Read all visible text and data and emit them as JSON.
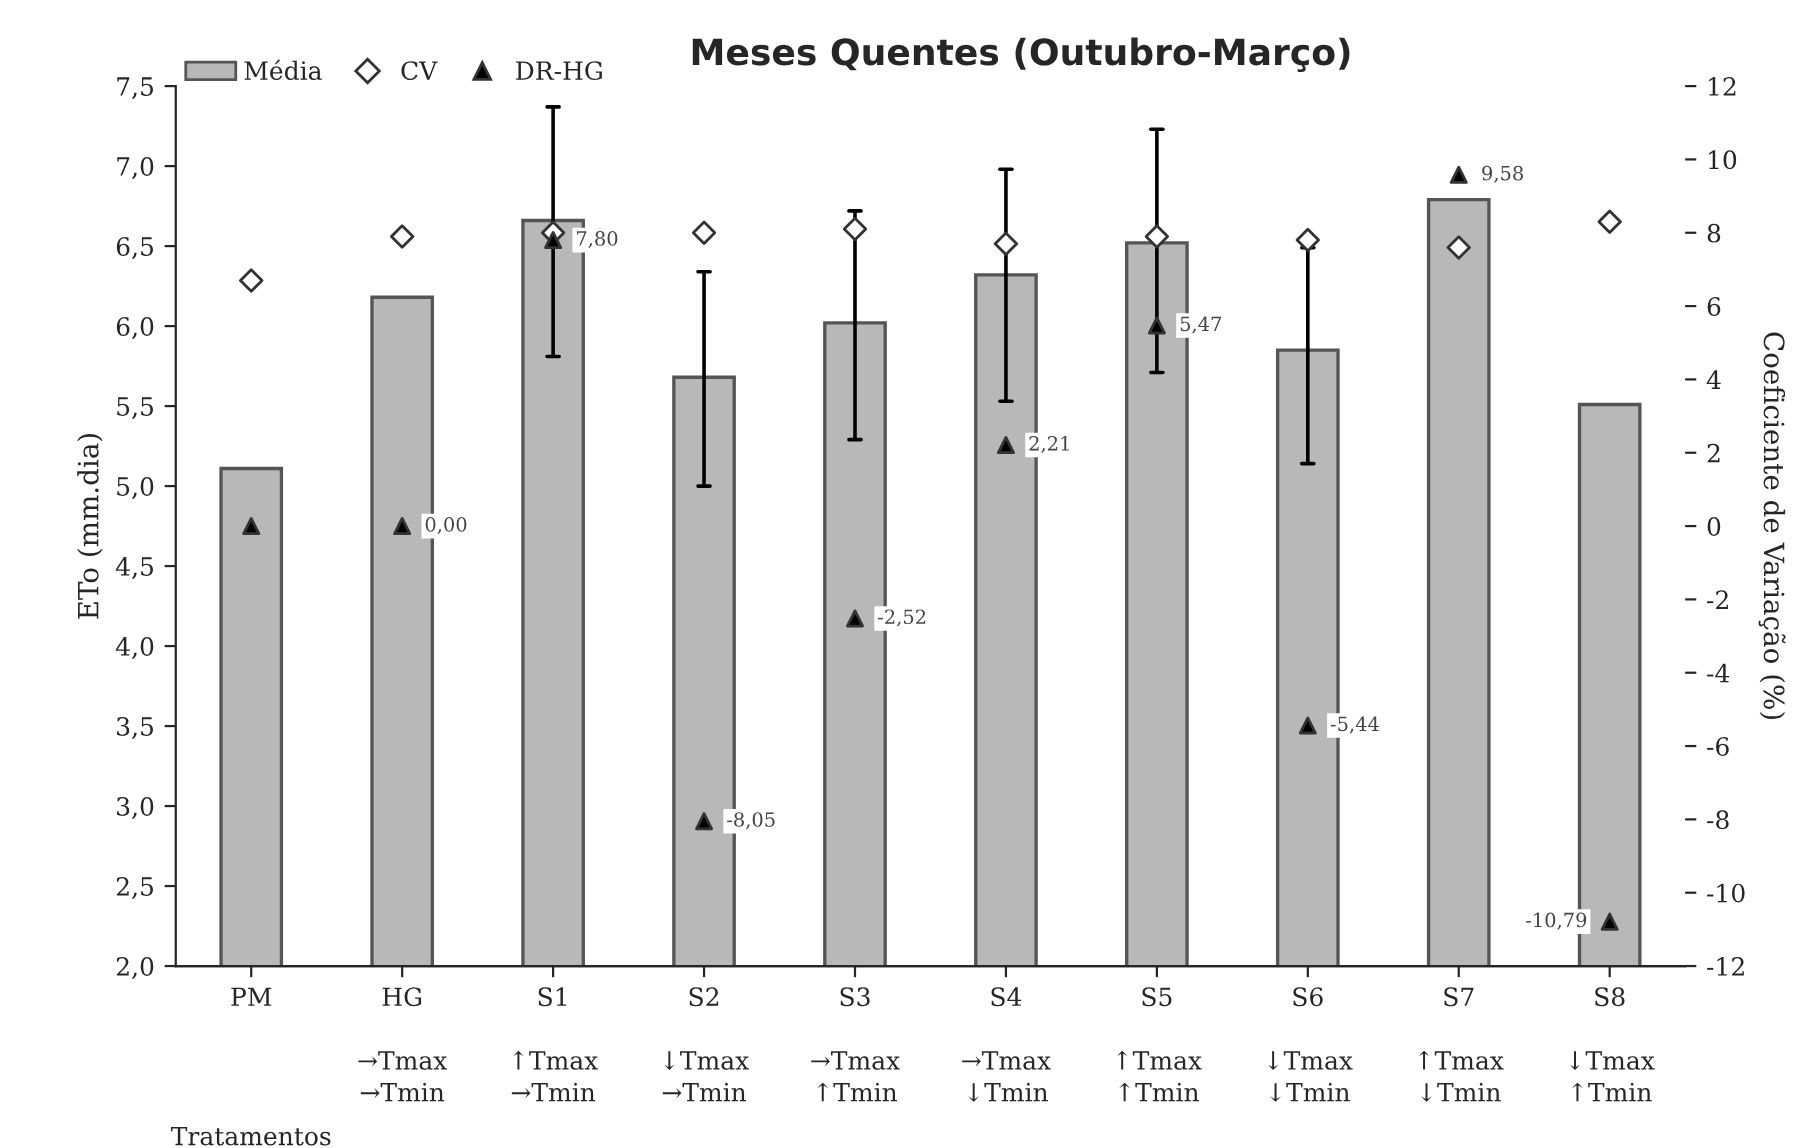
{
  "chart_data": {
    "type": "bar",
    "title": "Meses Quentes (Outubro-Março)",
    "annotations": [
      "Tratamentos"
    ],
    "ylabel": "ETo (mm.dia)",
    "y2label": "Coeficiente de Variação (%)",
    "categories": [
      "PM",
      "HG\n\n→Tmax\n→Tmin",
      "S1\n\n↑Tmax\n→Tmin",
      "S2\n\n↓Tmax\n→Tmin",
      "S3\n\n→Tmax\n↑Tmin",
      "S4\n\n→Tmax\n↓Tmin",
      "S5\n\n↑Tmax\n↑Tmin",
      "S6\n\n↓Tmax\n↓Tmin",
      "S7\n\n↑Tmax\n↓Tmin",
      "S8\n\n↓Tmax\n↑Tmin"
    ],
    "series": [
      {
        "name": "Média",
        "color": "#b8b8b8",
        "values": [
          5.11,
          6.18,
          6.66,
          5.68,
          6.02,
          6.32,
          6.52,
          5.85,
          6.79,
          5.51
        ],
        "errors": [
          null,
          null,
          [
            5.81,
            7.37
          ],
          [
            5.0,
            6.34
          ],
          [
            5.29,
            6.72
          ],
          [
            5.53,
            6.98
          ],
          [
            5.71,
            7.23
          ],
          [
            5.14,
            6.49
          ],
          null,
          null
        ]
      },
      {
        "name": "CV",
        "type": "scatter",
        "axis": "y2",
        "marker": "diamond",
        "color": "#ffffff",
        "values": [
          6.7,
          7.9,
          8.0,
          8.0,
          8.1,
          7.7,
          7.9,
          7.8,
          7.6,
          8.3
        ]
      },
      {
        "name": "DR-HG",
        "type": "scatter",
        "axis": "y2",
        "marker": "triangle",
        "color": "#000000",
        "values": [
          0.0,
          0.0,
          7.8,
          -8.05,
          -2.52,
          2.21,
          5.47,
          -5.44,
          9.58,
          -10.79
        ],
        "value_labels": [
          null,
          "0,00",
          "7,80",
          "-8,05",
          "-2,52",
          "2,21",
          "5,47",
          "-5,44",
          "9,58",
          "-10,79"
        ]
      }
    ],
    "ylim": [
      2.0,
      7.5
    ],
    "yticks": [
      {
        "value": 2.0,
        "label": "2,0"
      },
      {
        "value": 2.5,
        "label": "2,5"
      },
      {
        "value": 3.0,
        "label": "3,0"
      },
      {
        "value": 3.5,
        "label": "3,5"
      },
      {
        "value": 4.0,
        "label": "4,0"
      },
      {
        "value": 4.5,
        "label": "4,5"
      },
      {
        "value": 5.0,
        "label": "5,0"
      },
      {
        "value": 5.5,
        "label": "5,5"
      },
      {
        "value": 6.0,
        "label": "6,0"
      },
      {
        "value": 6.5,
        "label": "6,5"
      },
      {
        "value": 7.0,
        "label": "7,0"
      },
      {
        "value": 7.5,
        "label": "7,5"
      }
    ],
    "y2lim": [
      -12,
      12
    ],
    "y2ticks": [
      -12,
      -10,
      -8,
      -6,
      -4,
      -2,
      0,
      2,
      4,
      6,
      8,
      10,
      12
    ],
    "grid": false,
    "legend": "top left"
  }
}
